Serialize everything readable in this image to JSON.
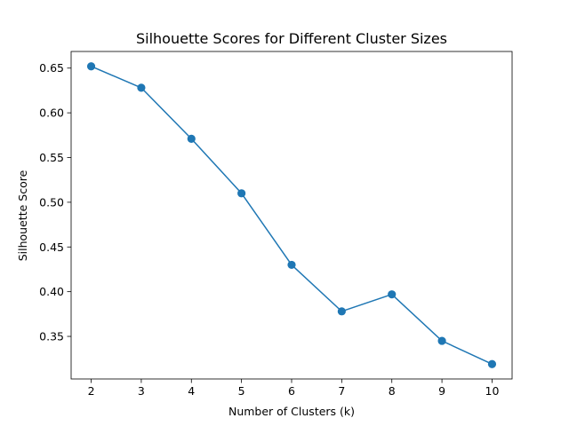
{
  "chart_data": {
    "type": "line",
    "title": "Silhouette Scores for Different Cluster Sizes",
    "xlabel": "Number of Clusters (k)",
    "ylabel": "Silhouette Score",
    "x": [
      2,
      3,
      4,
      5,
      6,
      7,
      8,
      9,
      10
    ],
    "series": [
      {
        "values": [
          0.652,
          0.628,
          0.571,
          0.51,
          0.43,
          0.378,
          0.397,
          0.345,
          0.319
        ]
      }
    ],
    "xticks": [
      2,
      3,
      4,
      5,
      6,
      7,
      8,
      9,
      10
    ],
    "yticks": [
      "0.35",
      "0.40",
      "0.45",
      "0.50",
      "0.55",
      "0.60",
      "0.65"
    ],
    "xlim": [
      1.6,
      10.4
    ],
    "ylim": [
      0.3024,
      0.6686
    ],
    "grid": false,
    "marker": "circle",
    "color": "#1f77b4"
  }
}
